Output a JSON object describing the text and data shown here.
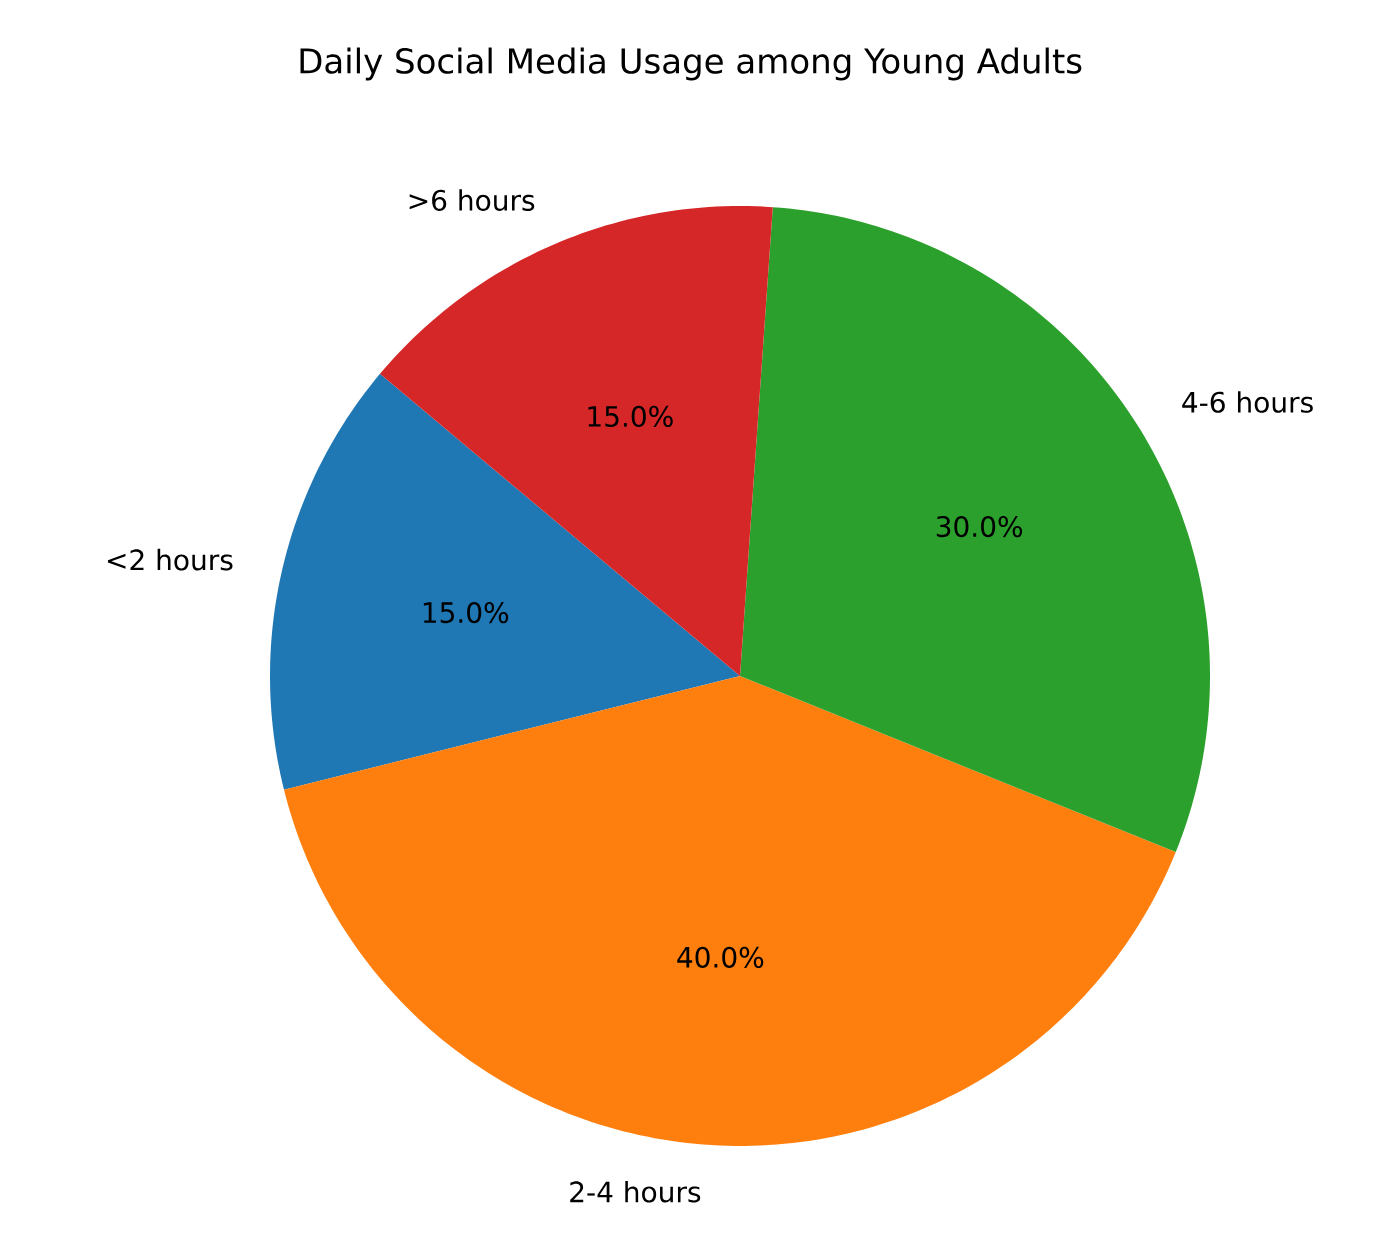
{
  "chart_data": {
    "type": "pie",
    "title": "Daily Social Media Usage among Young Adults",
    "categories": [
      "<2 hours",
      "2-4 hours",
      "4-6 hours",
      ">6 hours"
    ],
    "values": [
      15,
      40,
      30,
      15
    ],
    "value_labels": [
      "15.0%",
      "40.0%",
      "30.0%",
      "15.0%"
    ],
    "colors": [
      "#1f77b4",
      "#ff7f0e",
      "#2ca02c",
      "#d62728"
    ]
  }
}
